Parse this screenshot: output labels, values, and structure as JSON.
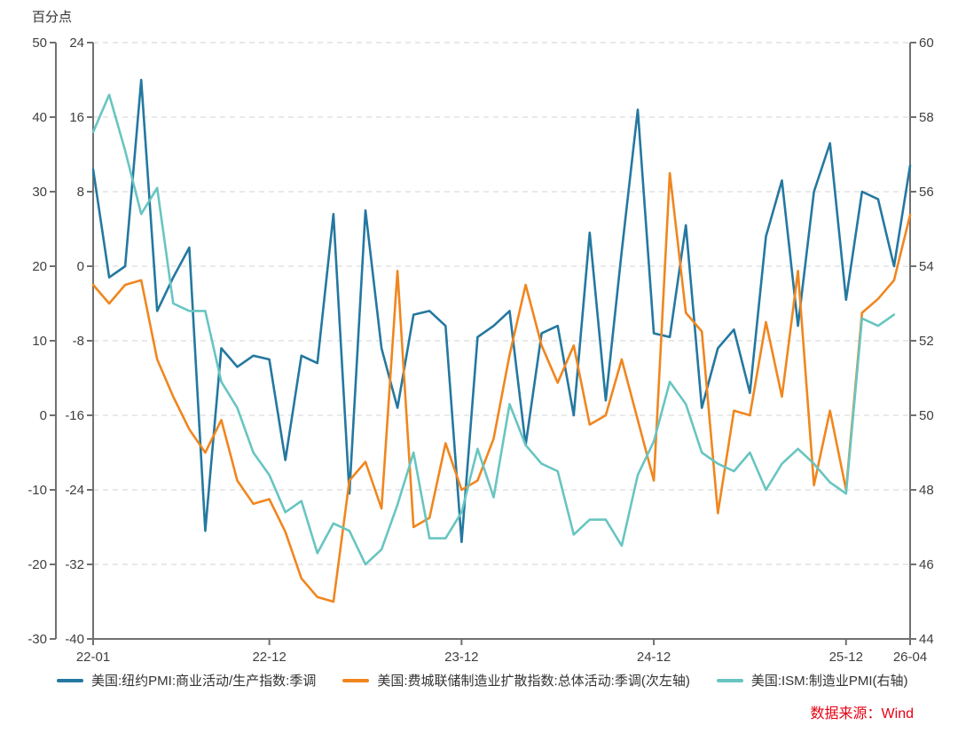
{
  "page": {
    "unit_label": "百分点",
    "source": "数据来源：Wind"
  },
  "chart_data": {
    "type": "line",
    "n_points": 52,
    "x_labels": [
      "22-01",
      "22-02",
      "22-03",
      "22-04",
      "22-05",
      "22-06",
      "22-07",
      "22-08",
      "22-09",
      "22-10",
      "22-11",
      "22-12",
      "23-01",
      "23-02",
      "23-03",
      "23-04",
      "23-05",
      "23-06",
      "23-07",
      "23-08",
      "23-09",
      "23-10",
      "23-11",
      "23-12",
      "24-01",
      "24-02",
      "24-03",
      "24-04",
      "24-05",
      "24-06",
      "24-07",
      "24-08",
      "24-09",
      "24-10",
      "24-11",
      "24-12",
      "25-01",
      "25-02",
      "25-03",
      "25-04",
      "25-05",
      "25-06",
      "25-07",
      "25-08",
      "25-09",
      "25-10",
      "25-11",
      "25-12",
      "26-01",
      "26-02",
      "26-03",
      "26-04"
    ],
    "x_tick_indices": [
      0,
      11,
      23,
      35,
      47,
      51
    ],
    "x_tick_labels": [
      "22-01",
      "22-12",
      "23-12",
      "24-12",
      "25-12",
      "26-04"
    ],
    "grid": "horizontal-dashed",
    "legend_position": "bottom",
    "axes": {
      "left_primary": {
        "min": -30,
        "max": 50,
        "ticks": [
          50,
          40,
          30,
          20,
          10,
          0,
          -10,
          -20,
          -30
        ]
      },
      "left_secondary": {
        "min": -40,
        "max": 24,
        "ticks": [
          24,
          16,
          8,
          0,
          -8,
          -16,
          -24,
          -32,
          -40
        ]
      },
      "right": {
        "min": 44,
        "max": 60,
        "ticks": [
          60,
          58,
          56,
          54,
          52,
          50,
          48,
          46,
          44
        ]
      }
    },
    "series": [
      {
        "name": "美国:纽约PMI:商业活动/生产指数:季调",
        "axis": "left_primary",
        "color": "#2478A0",
        "values": [
          33,
          18.5,
          20,
          45,
          14,
          18.5,
          22.5,
          -15.5,
          9,
          6.5,
          8,
          7.5,
          -6,
          8,
          7,
          27,
          -10.5,
          27.5,
          9,
          1,
          13.5,
          14,
          12,
          -17,
          10.5,
          12,
          14,
          -4,
          11,
          12,
          0,
          24.5,
          2,
          22,
          41,
          11,
          10.5,
          25.5,
          1,
          9,
          11.5,
          3,
          24,
          31.5,
          12,
          30,
          36.5,
          15.5,
          30,
          29,
          20,
          33.5
        ]
      },
      {
        "name": "美国:费城联储制造业扩散指数:总体活动:季调(次左轴)",
        "axis": "left_secondary",
        "color": "#F0861E",
        "values": [
          -2,
          -4,
          -2,
          -1.5,
          -10,
          -14,
          -17.5,
          -20,
          -16.5,
          -23,
          -25.5,
          -25,
          -28.5,
          -33.5,
          -35.5,
          -36,
          -23,
          -21,
          -26,
          -0.5,
          -28,
          -27,
          -19,
          -24,
          -23,
          -18.5,
          -9.5,
          -2,
          -8.5,
          -12.5,
          -8.5,
          -17,
          -16,
          -10,
          -16.5,
          -23,
          10,
          -5,
          -7,
          -26.5,
          -15.5,
          -16,
          -6,
          -14,
          -0.5,
          -23.5,
          -15.5,
          -24,
          -5,
          -3.5,
          -1.5,
          5.5
        ]
      },
      {
        "name": "美国:ISM:制造业PMI(右轴)",
        "axis": "right",
        "color": "#68C5C1",
        "values": [
          57.6,
          58.6,
          57.1,
          55.4,
          56.1,
          53.0,
          52.8,
          52.8,
          50.9,
          50.2,
          49.0,
          48.4,
          47.4,
          47.7,
          46.3,
          47.1,
          46.9,
          46.0,
          46.4,
          47.6,
          49.0,
          46.7,
          46.7,
          47.4,
          49.1,
          47.8,
          50.3,
          49.2,
          48.7,
          48.5,
          46.8,
          47.2,
          47.2,
          46.5,
          48.4,
          49.3,
          50.9,
          50.3,
          49.0,
          48.7,
          48.5,
          49.0,
          48.0,
          48.7,
          49.1,
          48.7,
          48.2,
          47.9,
          52.6,
          52.4,
          52.7,
          null
        ]
      }
    ]
  }
}
